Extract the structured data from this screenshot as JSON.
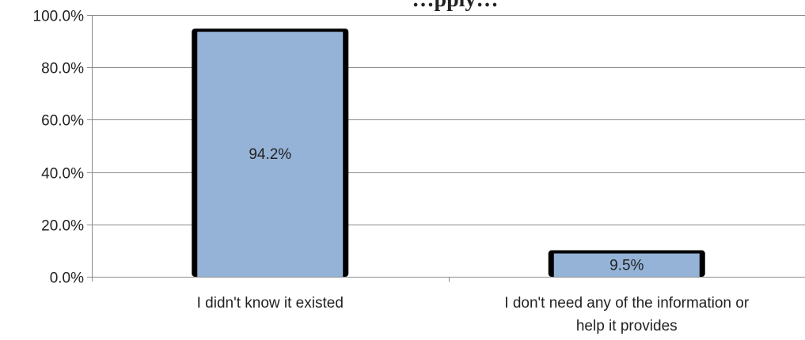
{
  "chart_data": {
    "type": "bar",
    "title": "…pply…",
    "xlabel": "",
    "ylabel": "",
    "categories": [
      [
        "I didn't know it existed"
      ],
      [
        "I don't need any of the information or",
        "help it provides"
      ]
    ],
    "values": [
      94.2,
      9.5
    ],
    "data_labels": [
      "94.2%",
      "9.5%"
    ],
    "ylim": [
      0,
      100
    ],
    "y_ticks": [
      0,
      20,
      40,
      60,
      80,
      100
    ],
    "y_tick_labels": [
      "0.0%",
      "20.0%",
      "40.0%",
      "60.0%",
      "80.0%",
      "100.0%"
    ],
    "grid": true,
    "legend": "none",
    "colors": {
      "bar_fill": "#95b3d7",
      "bar_outline": "#000000",
      "grid": "#8c8c8c",
      "axis": "#8c8c8c",
      "text": "#222222"
    }
  }
}
